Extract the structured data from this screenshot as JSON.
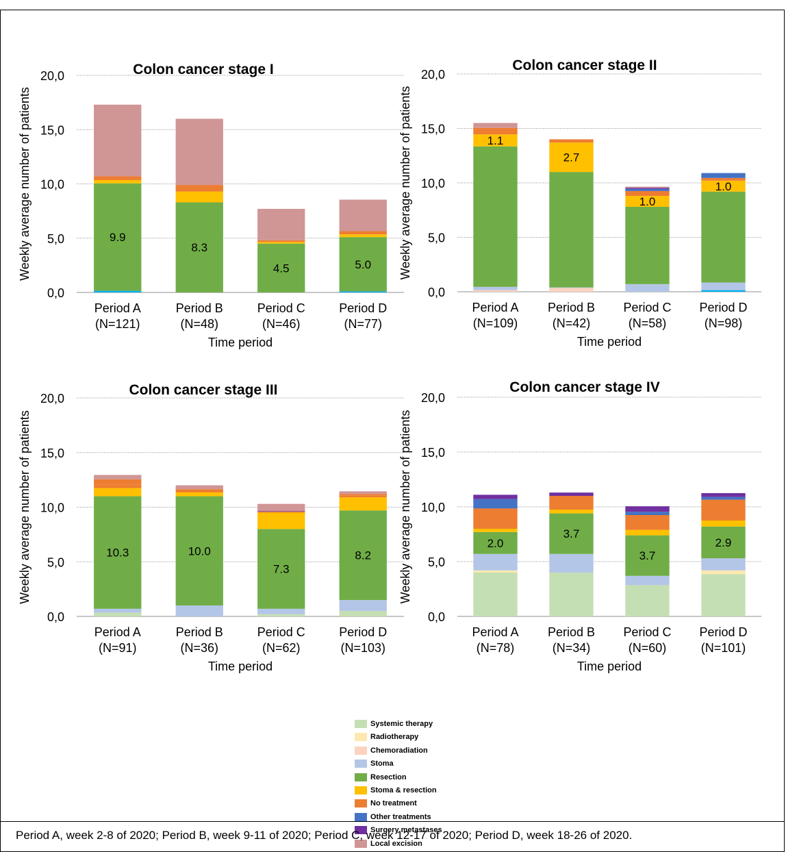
{
  "footer_note": "Period A, week 2-8 of 2020; Period B, week 9-11 of 2020; Period C, week 12-17 of 2020; Period D, week 18-26 of 2020.",
  "legend": [
    {
      "name": "Systemic therapy",
      "color": "#c5dfb4"
    },
    {
      "name": "Radiotherapy",
      "color": "#fde9b0"
    },
    {
      "name": "Chemoradiation",
      "color": "#fbd3c0"
    },
    {
      "name": "Stoma",
      "color": "#b4c6e7"
    },
    {
      "name": "Resection",
      "color": "#70ad47"
    },
    {
      "name": "Stoma & resection",
      "color": "#ffc000"
    },
    {
      "name": "No treatment",
      "color": "#ed7d31"
    },
    {
      "name": "Other treatments",
      "color": "#4472c4"
    },
    {
      "name": "Surgery metastases",
      "color": "#7030a0"
    },
    {
      "name": "Local excision",
      "color": "#d09595"
    }
  ],
  "chart_data": [
    {
      "type": "bar",
      "stacked": true,
      "title": "Colon cancer stage I",
      "xlabel": "Time period",
      "ylabel": "Weekly average number of patients",
      "ylim": [
        0,
        20
      ],
      "yticks": [
        "0,0",
        "5,0",
        "10,0",
        "15,0",
        "20,0"
      ],
      "categories": [
        [
          "Period A",
          "(N=121)"
        ],
        [
          "Period B",
          "(N=48)"
        ],
        [
          "Period C",
          "(N=46)"
        ],
        [
          "Period D",
          "(N=77)"
        ]
      ],
      "series": [
        {
          "name": "Other treatments",
          "color": "#00b0f0",
          "values": [
            0.15,
            0,
            0,
            0.1
          ]
        },
        {
          "name": "Resection",
          "values": [
            9.9,
            8.3,
            4.5,
            5.0
          ]
        },
        {
          "name": "Stoma & resection",
          "values": [
            0.3,
            1.0,
            0.15,
            0.25
          ]
        },
        {
          "name": "No treatment",
          "values": [
            0.35,
            0.6,
            0.15,
            0.3
          ]
        },
        {
          "name": "Local excision",
          "values": [
            6.6,
            6.1,
            2.9,
            2.9
          ]
        }
      ],
      "data_labels": [
        {
          "series": "Resection",
          "labels": [
            "9.9",
            "8.3",
            "4.5",
            "5.0"
          ]
        }
      ]
    },
    {
      "type": "bar",
      "stacked": true,
      "title": "Colon cancer stage II",
      "xlabel": "Time period",
      "ylabel": "Weekly average number of patients",
      "ylim": [
        0,
        20
      ],
      "yticks": [
        "0,0",
        "5,0",
        "10,0",
        "15,0",
        "20,0"
      ],
      "categories": [
        [
          "Period A",
          "(N=109)"
        ],
        [
          "Period B",
          "(N=42)"
        ],
        [
          "Period C",
          "(N=58)"
        ],
        [
          "Period D",
          "(N=98)"
        ]
      ],
      "series": [
        {
          "name": "Other treatments",
          "color": "#00b0f0",
          "values": [
            0,
            0,
            0,
            0.15
          ]
        },
        {
          "name": "Chemoradiation",
          "values": [
            0.15,
            0.35,
            0,
            0
          ]
        },
        {
          "name": "Stoma",
          "values": [
            0.3,
            0.05,
            0.7,
            0.7
          ]
        },
        {
          "name": "Resection",
          "values": [
            12.9,
            10.6,
            7.1,
            8.35
          ]
        },
        {
          "name": "Stoma & resection",
          "values": [
            1.1,
            2.7,
            1.0,
            1.0
          ]
        },
        {
          "name": "No treatment",
          "values": [
            0.6,
            0.3,
            0.45,
            0.25
          ]
        },
        {
          "name": "Other treatments",
          "values": [
            0,
            0,
            0.2,
            0.45
          ]
        },
        {
          "name": "Surgery metastases",
          "values": [
            0,
            0,
            0.1,
            0
          ]
        },
        {
          "name": "Local excision",
          "values": [
            0.45,
            0,
            0.1,
            0
          ]
        }
      ],
      "data_labels": [
        {
          "series": "Stoma & resection",
          "labels": [
            "1.1",
            "2.7",
            "1.0",
            "1.0"
          ]
        }
      ]
    },
    {
      "type": "bar",
      "stacked": true,
      "title": "Colon cancer stage III",
      "xlabel": "Time period",
      "ylabel": "Weekly average number of patients",
      "ylim": [
        0,
        20
      ],
      "yticks": [
        "0,0",
        "5,0",
        "10,0",
        "15,0",
        "20,0"
      ],
      "categories": [
        [
          "Period A",
          "(N=91)"
        ],
        [
          "Period B",
          "(N=36)"
        ],
        [
          "Period C",
          "(N=62)"
        ],
        [
          "Period D",
          "(N=103)"
        ]
      ],
      "series": [
        {
          "name": "Systemic therapy",
          "values": [
            0.35,
            0,
            0.2,
            0.5
          ]
        },
        {
          "name": "Stoma",
          "values": [
            0.35,
            1.0,
            0.5,
            1.0
          ]
        },
        {
          "name": "Resection",
          "values": [
            10.3,
            10.0,
            7.3,
            8.2
          ]
        },
        {
          "name": "Stoma & resection",
          "values": [
            0.75,
            0.35,
            1.5,
            1.2
          ]
        },
        {
          "name": "No treatment",
          "values": [
            0.3,
            0.3,
            0.1,
            0.15
          ]
        },
        {
          "name": "Surgery metastases",
          "values": [
            0,
            0,
            0.05,
            0
          ]
        },
        {
          "name": "No treatment",
          "values": [
            0.5,
            0,
            0,
            0.15
          ]
        },
        {
          "name": "Local excision",
          "values": [
            0.4,
            0.35,
            0.65,
            0.25
          ]
        }
      ],
      "data_labels": [
        {
          "series": "Resection",
          "labels": [
            "10.3",
            "10.0",
            "7.3",
            "8.2"
          ]
        }
      ]
    },
    {
      "type": "bar",
      "stacked": true,
      "title": "Colon cancer stage IV",
      "xlabel": "Time period",
      "ylabel": "Weekly average number of patients",
      "ylim": [
        0,
        20
      ],
      "yticks": [
        "0,0",
        "5,0",
        "10,0",
        "15,0",
        "20,0"
      ],
      "categories": [
        [
          "Period A",
          "(N=78)"
        ],
        [
          "Period B",
          "(N=34)"
        ],
        [
          "Period C",
          "(N=60)"
        ],
        [
          "Period D",
          "(N=101)"
        ]
      ],
      "series": [
        {
          "name": "Systemic therapy",
          "values": [
            4.0,
            4.0,
            2.85,
            3.85
          ]
        },
        {
          "name": "Radiotherapy",
          "values": [
            0.2,
            0,
            0,
            0.35
          ]
        },
        {
          "name": "Stoma",
          "values": [
            1.5,
            1.7,
            0.85,
            1.1
          ]
        },
        {
          "name": "Resection",
          "values": [
            2.0,
            3.7,
            3.7,
            2.9
          ]
        },
        {
          "name": "Stoma & resection",
          "values": [
            0.3,
            0.35,
            0.5,
            0.55
          ]
        },
        {
          "name": "No treatment",
          "values": [
            1.85,
            1.25,
            1.35,
            1.9
          ]
        },
        {
          "name": "Other treatments",
          "values": [
            0.85,
            0,
            0.3,
            0.25
          ]
        },
        {
          "name": "Surgery metastases",
          "values": [
            0.4,
            0.3,
            0.5,
            0.35
          ]
        }
      ],
      "data_labels": [
        {
          "series": "Resection",
          "labels": [
            "2.0",
            "3.7",
            "3.7",
            "2.9"
          ]
        }
      ]
    }
  ]
}
